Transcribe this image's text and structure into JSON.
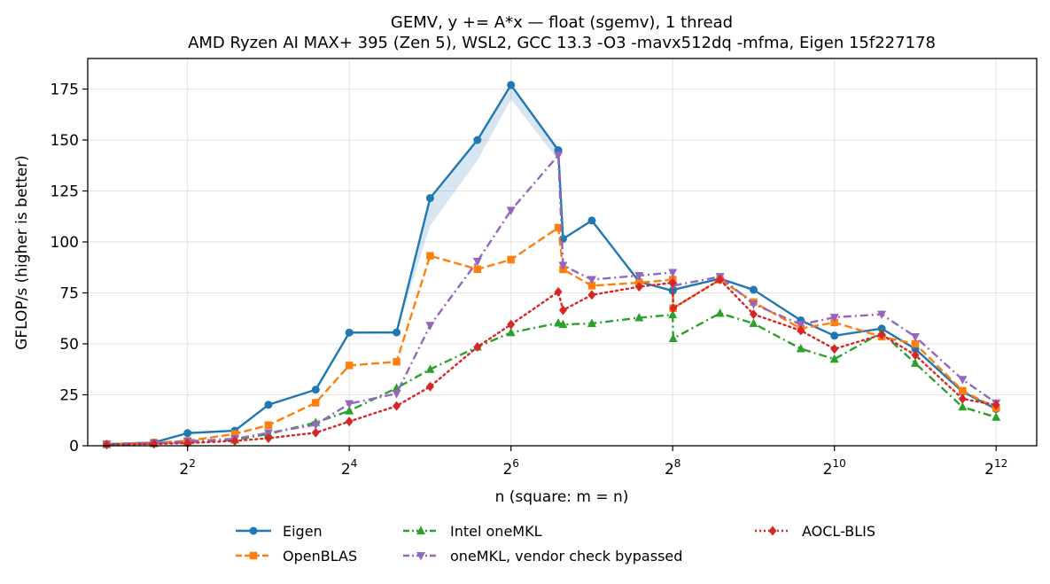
{
  "chart_data": {
    "type": "line",
    "title": "GEMV, y += A*x — float (sgemv), 1 thread",
    "subtitle": "AMD Ryzen AI MAX+ 395 (Zen 5), WSL2, GCC 13.3 -O3 -mavx512dq -mfma, Eigen 15f227178",
    "xlabel": "n (square: m = n)",
    "ylabel": "GFLOP/s (higher is better)",
    "xscale": "log2",
    "xlim": [
      1.7,
      5800
    ],
    "ylim": [
      0,
      190
    ],
    "x_ticks": [
      4,
      16,
      64,
      256,
      1024,
      4096
    ],
    "x_tick_labels": [
      {
        "base": "2",
        "exp": "2"
      },
      {
        "base": "2",
        "exp": "4"
      },
      {
        "base": "2",
        "exp": "6"
      },
      {
        "base": "2",
        "exp": "8"
      },
      {
        "base": "2",
        "exp": "10"
      },
      {
        "base": "2",
        "exp": "12"
      }
    ],
    "y_ticks": [
      0,
      25,
      50,
      75,
      100,
      125,
      150,
      175
    ],
    "grid": true,
    "legend_position": "bottom",
    "series": [
      {
        "name": "Eigen",
        "color": "#1f77b4",
        "marker": "circle",
        "linestyle": "solid",
        "x": [
          2,
          3,
          4,
          6,
          8,
          12,
          16,
          24,
          32,
          48,
          64,
          96,
          100,
          128,
          192,
          256,
          257,
          384,
          512,
          768,
          1024,
          1536,
          2048,
          3072,
          4096
        ],
        "y": [
          0.8,
          1.6,
          6.2,
          7.4,
          20.1,
          27.5,
          55.5,
          55.6,
          121.5,
          150,
          177,
          145,
          101.5,
          110.5,
          80.5,
          76,
          76.5,
          82,
          76.5,
          61.5,
          54,
          57.5,
          47.5,
          26.5,
          18
        ],
        "band": {
          "x": [
            24,
            32,
            48,
            64,
            96
          ],
          "lower": [
            55.6,
            108,
            140,
            170,
            140
          ],
          "upper": [
            55.6,
            121.5,
            150,
            177,
            145
          ]
        }
      },
      {
        "name": "OpenBLAS",
        "color": "#ff7f0e",
        "marker": "square",
        "linestyle": "dashed",
        "x": [
          2,
          3,
          4,
          6,
          8,
          12,
          16,
          24,
          32,
          48,
          64,
          96,
          100,
          128,
          192,
          256,
          257,
          384,
          512,
          768,
          1024,
          1536,
          2048,
          3072,
          4096
        ],
        "y": [
          0.8,
          1.5,
          2.4,
          5.8,
          10.1,
          21.1,
          39.4,
          41.2,
          93.2,
          86.6,
          91.3,
          107,
          86.5,
          78.5,
          80,
          81.5,
          67.5,
          81.5,
          70.5,
          57.5,
          60.5,
          53.5,
          50,
          27,
          18.5
        ]
      },
      {
        "name": "Intel oneMKL",
        "color": "#2ca02c",
        "marker": "triangle-up",
        "linestyle": "dashdot",
        "x": [
          2,
          3,
          4,
          6,
          8,
          12,
          16,
          24,
          32,
          48,
          64,
          96,
          100,
          128,
          192,
          256,
          257,
          384,
          512,
          768,
          1024,
          1536,
          2048,
          3072,
          4096
        ],
        "y": [
          0.6,
          1.1,
          1.8,
          2.9,
          5.8,
          11.4,
          17.1,
          28.3,
          37.5,
          48.5,
          55.5,
          60.2,
          59.5,
          60,
          62.8,
          64.3,
          52.6,
          65,
          60,
          47.6,
          42.5,
          55.5,
          40.5,
          19,
          14
        ]
      },
      {
        "name": "oneMKL, vendor check bypassed",
        "color": "#9467bd",
        "marker": "triangle-down",
        "linestyle": "dashdot",
        "x": [
          2,
          3,
          4,
          6,
          8,
          12,
          16,
          24,
          32,
          48,
          64,
          96,
          100,
          128,
          192,
          256,
          257,
          384,
          512,
          768,
          1024,
          1536,
          2048,
          3072,
          4096
        ],
        "y": [
          0.7,
          1.3,
          2.2,
          3.4,
          6.3,
          10.3,
          20.6,
          25.6,
          59,
          90.5,
          115.5,
          142.5,
          88.5,
          81.5,
          83.5,
          85,
          78.5,
          83,
          69.5,
          59.5,
          63,
          64.5,
          53.5,
          32.5,
          21
        ]
      },
      {
        "name": "AOCL-BLIS",
        "color": "#d62728",
        "marker": "diamond",
        "linestyle": "dotted",
        "x": [
          2,
          3,
          4,
          6,
          8,
          12,
          16,
          24,
          32,
          48,
          64,
          96,
          100,
          128,
          192,
          256,
          257,
          384,
          512,
          768,
          1024,
          1536,
          2048,
          3072,
          4096
        ],
        "y": [
          0.5,
          0.9,
          1.3,
          2.4,
          3.7,
          6.4,
          11.9,
          19.5,
          29,
          48.5,
          59.5,
          75.5,
          66.5,
          74,
          78,
          80,
          67.5,
          81.5,
          64.5,
          56.5,
          47.5,
          54.5,
          44.5,
          23,
          20
        ]
      }
    ]
  }
}
